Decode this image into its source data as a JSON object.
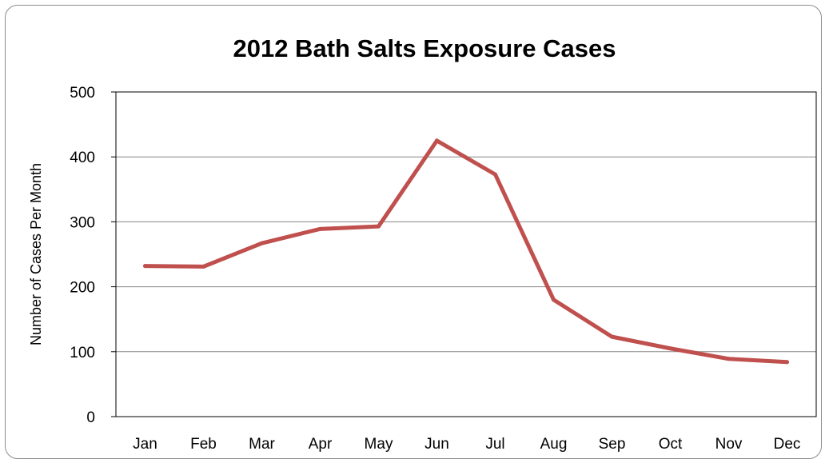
{
  "chart_data": {
    "type": "line",
    "title": "2012 Bath Salts Exposure Cases",
    "xlabel": "",
    "ylabel": "Number of Cases Per Month",
    "categories": [
      "Jan",
      "Feb",
      "Mar",
      "Apr",
      "May",
      "Jun",
      "Jul",
      "Aug",
      "Sep",
      "Oct",
      "Nov",
      "Dec"
    ],
    "series": [
      {
        "values": [
          232,
          231,
          267,
          289,
          293,
          425,
          373,
          180,
          123,
          105,
          89,
          84
        ],
        "color": "#c0504d"
      }
    ],
    "ylim": [
      0,
      500
    ],
    "yticks": [
      0,
      100,
      200,
      300,
      400,
      500
    ],
    "grid": true,
    "legend": "none"
  }
}
